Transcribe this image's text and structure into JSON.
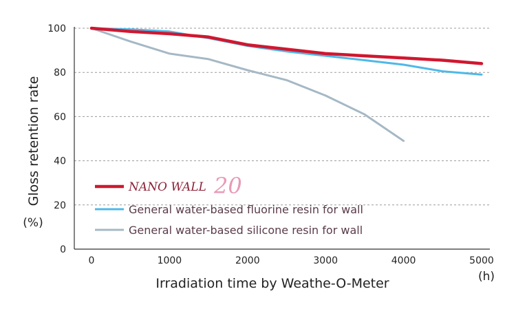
{
  "chart_data": {
    "type": "line",
    "title": "",
    "xlabel": "Irradiation time by Weathe-O-Meter",
    "xunit": "(h)",
    "ylabel": "Gloss retention rate",
    "yunit": "(%)",
    "xlim": [
      0,
      5000
    ],
    "ylim": [
      0,
      100
    ],
    "x_ticks": [
      "0",
      "1000",
      "2000",
      "3000",
      "4000",
      "5000"
    ],
    "y_ticks": [
      "0",
      "20",
      "40",
      "60",
      "80",
      "100"
    ],
    "grid": "horizontal dashed",
    "legend_position": "lower-left",
    "series": [
      {
        "name": "NANO WALL 20",
        "legend_name": "NANO WALL",
        "legend_number": "20",
        "color": "#d0172f",
        "x": [
          0,
          500,
          1000,
          1500,
          2000,
          2500,
          3000,
          3500,
          4000,
          4500,
          5000
        ],
        "y": [
          100,
          98.5,
          97.5,
          96,
          92.5,
          90.5,
          88.5,
          87.5,
          86.5,
          85.5,
          84
        ]
      },
      {
        "name": "General water-based fluorine resin for wall",
        "color": "#4fb8e8",
        "x": [
          0,
          500,
          1000,
          1500,
          2000,
          2500,
          3000,
          3500,
          4000,
          4500,
          5000
        ],
        "y": [
          100,
          99.5,
          98.5,
          95.5,
          92,
          89.5,
          87.5,
          85.5,
          83.5,
          80.5,
          79
        ]
      },
      {
        "name": "General water-based silicone resin for wall",
        "color": "#a5b8c5",
        "x": [
          0,
          500,
          1000,
          1500,
          2000,
          2500,
          3000,
          3500,
          4000
        ],
        "y": [
          100,
          94,
          88.5,
          86,
          81,
          76.5,
          69.5,
          61,
          49
        ]
      }
    ]
  }
}
